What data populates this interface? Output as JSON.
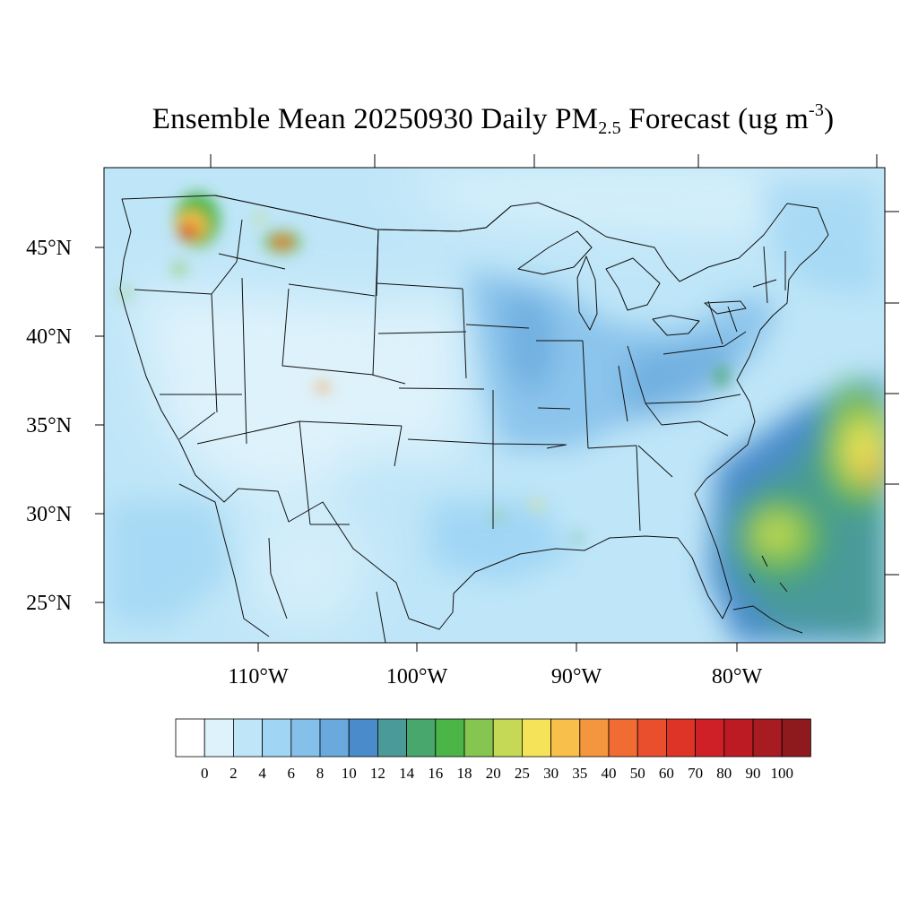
{
  "title": {
    "prefix": "Ensemble Mean 20250930 Daily PM",
    "subscript": "2.5",
    "middle": " Forecast (ug m",
    "superscript": "-3",
    "suffix": ")"
  },
  "map": {
    "lat_labels": [
      "45°N",
      "40°N",
      "35°N",
      "30°N",
      "25°N"
    ],
    "lon_labels": [
      "110°W",
      "100°W",
      "90°W",
      "80°W"
    ]
  },
  "colorbar": {
    "labels": [
      "0",
      "2",
      "4",
      "6",
      "8",
      "10",
      "12",
      "14",
      "16",
      "18",
      "20",
      "25",
      "30",
      "35",
      "40",
      "50",
      "60",
      "70",
      "80",
      "90",
      "100"
    ],
    "colors": [
      "#ffffff",
      "#def2fb",
      "#bfe6f8",
      "#a0d6f4",
      "#85c0ea",
      "#69a9dd",
      "#4a8bcb",
      "#4a9a9a",
      "#48a76c",
      "#4cb548",
      "#86c54f",
      "#c5d957",
      "#f5e45a",
      "#f8c04a",
      "#f4963d",
      "#f06c33",
      "#e94f2c",
      "#de3427",
      "#cf2027",
      "#bd1b24",
      "#a71b21",
      "#8e1a1e"
    ]
  },
  "colors": {
    "base_fill": "#bfe6f8",
    "ocean_fill": "#bfe6f8",
    "boundary": "#111111"
  }
}
